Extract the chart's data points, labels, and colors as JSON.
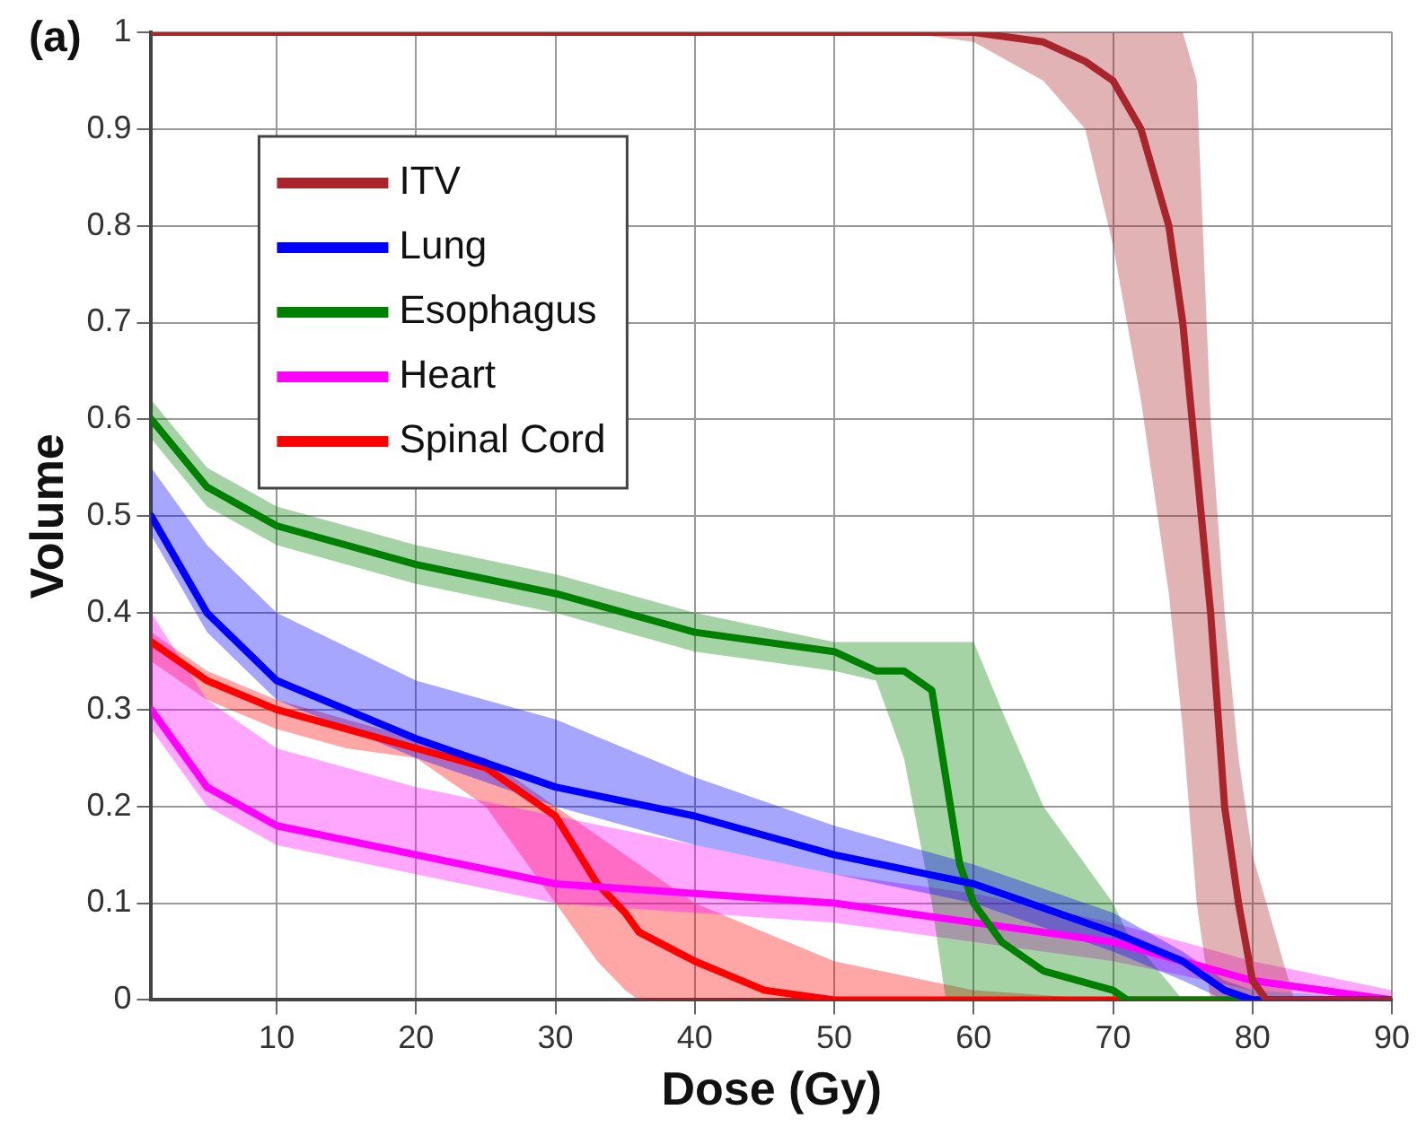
{
  "chart_data": {
    "type": "line",
    "xlabel": "Dose (Gy)",
    "ylabel": "Volume",
    "annotations": [
      "(a)"
    ],
    "xlim": [
      1,
      90
    ],
    "xticks": [
      10,
      20,
      30,
      40,
      50,
      60,
      70,
      80,
      90
    ],
    "ylim": [
      0,
      1
    ],
    "yticks": [
      0,
      0.1,
      0.2,
      0.3,
      0.4,
      0.5,
      0.6,
      0.7,
      0.8,
      0.9,
      1
    ],
    "grid": true,
    "legend": "top left",
    "line_style": "solid",
    "marker": "none",
    "series": [
      {
        "name": "ITV",
        "color": "#a8262b",
        "x": [
          1,
          55,
          60,
          65,
          68,
          70,
          72,
          74,
          75,
          76,
          77,
          78,
          79,
          80,
          81,
          82,
          83,
          90
        ],
        "values": [
          1,
          1,
          1,
          0.99,
          0.97,
          0.95,
          0.9,
          0.8,
          0.7,
          0.55,
          0.4,
          0.2,
          0.1,
          0.02,
          0,
          0,
          0,
          0
        ],
        "lower": [
          1,
          1,
          0.99,
          0.95,
          0.9,
          0.78,
          0.62,
          0.42,
          0.28,
          0.1,
          0,
          0,
          0,
          0,
          0,
          0,
          0,
          0
        ],
        "upper": [
          1,
          1,
          1,
          1,
          1,
          1,
          1,
          1,
          1,
          0.95,
          0.6,
          0.4,
          0.25,
          0.15,
          0.1,
          0.05,
          0,
          0
        ]
      },
      {
        "name": "Lung",
        "color": "#0000ff",
        "x": [
          1,
          5,
          10,
          20,
          30,
          40,
          50,
          60,
          70,
          75,
          78,
          80,
          90
        ],
        "values": [
          0.5,
          0.4,
          0.33,
          0.27,
          0.22,
          0.19,
          0.15,
          0.12,
          0.07,
          0.04,
          0.01,
          0,
          0
        ],
        "lower": [
          0.48,
          0.38,
          0.31,
          0.25,
          0.2,
          0.16,
          0.13,
          0.1,
          0.05,
          0.02,
          0,
          0,
          0
        ],
        "upper": [
          0.55,
          0.47,
          0.4,
          0.33,
          0.29,
          0.23,
          0.18,
          0.14,
          0.09,
          0.05,
          0.02,
          0.01,
          0
        ]
      },
      {
        "name": "Esophagus",
        "color": "#008000",
        "x": [
          1,
          5,
          10,
          20,
          30,
          40,
          50,
          53,
          55,
          57,
          58,
          59,
          60,
          62,
          65,
          70,
          71,
          75,
          90
        ],
        "values": [
          0.6,
          0.53,
          0.49,
          0.45,
          0.42,
          0.38,
          0.36,
          0.34,
          0.34,
          0.32,
          0.23,
          0.14,
          0.1,
          0.06,
          0.03,
          0.01,
          0,
          0,
          0
        ],
        "lower": [
          0.58,
          0.51,
          0.47,
          0.43,
          0.4,
          0.36,
          0.34,
          0.33,
          0.25,
          0.1,
          0,
          0,
          0,
          0,
          0,
          0,
          0,
          0,
          0
        ],
        "upper": [
          0.62,
          0.55,
          0.51,
          0.47,
          0.44,
          0.4,
          0.37,
          0.37,
          0.37,
          0.37,
          0.37,
          0.37,
          0.37,
          0.3,
          0.2,
          0.1,
          0.07,
          0,
          0
        ]
      },
      {
        "name": "Heart",
        "color": "#ff00ff",
        "x": [
          1,
          5,
          10,
          20,
          30,
          40,
          50,
          60,
          70,
          80,
          90
        ],
        "values": [
          0.3,
          0.22,
          0.18,
          0.15,
          0.12,
          0.11,
          0.1,
          0.08,
          0.06,
          0.02,
          0
        ],
        "lower": [
          0.28,
          0.2,
          0.16,
          0.13,
          0.1,
          0.09,
          0.08,
          0.06,
          0.04,
          0.01,
          0
        ],
        "upper": [
          0.4,
          0.31,
          0.26,
          0.22,
          0.19,
          0.16,
          0.13,
          0.11,
          0.08,
          0.04,
          0.01
        ]
      },
      {
        "name": "Spinal Cord",
        "color": "#ff0000",
        "x": [
          1,
          5,
          10,
          15,
          20,
          25,
          30,
          33,
          35,
          36,
          40,
          45,
          50,
          60,
          70,
          90
        ],
        "values": [
          0.37,
          0.33,
          0.3,
          0.28,
          0.26,
          0.24,
          0.19,
          0.12,
          0.09,
          0.07,
          0.04,
          0.01,
          0,
          0,
          0,
          0
        ],
        "lower": [
          0.35,
          0.31,
          0.28,
          0.26,
          0.25,
          0.2,
          0.1,
          0.04,
          0.01,
          0,
          0,
          0,
          0,
          0,
          0,
          0
        ],
        "upper": [
          0.38,
          0.34,
          0.31,
          0.29,
          0.27,
          0.25,
          0.2,
          0.17,
          0.15,
          0.14,
          0.1,
          0.07,
          0.04,
          0.01,
          0,
          0
        ]
      }
    ]
  }
}
